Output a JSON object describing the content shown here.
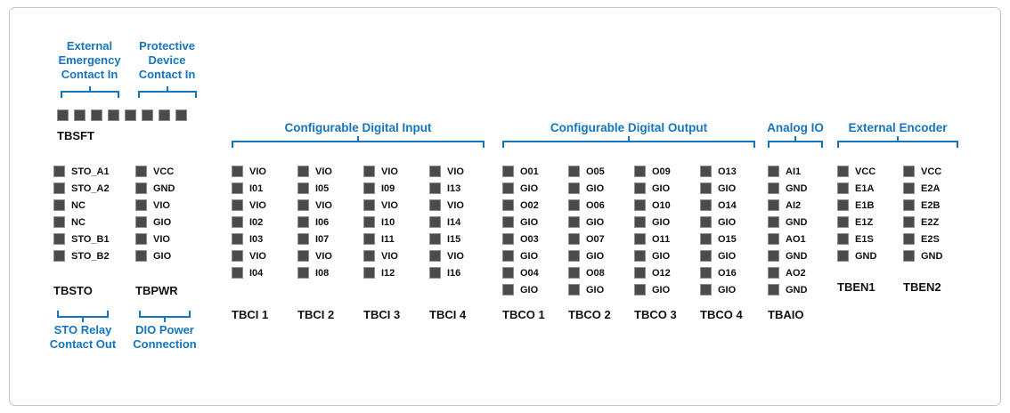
{
  "colors": {
    "accent": "#1576BD",
    "pin_fill": "#4B4B4B",
    "pin_border": "#8F8F8F",
    "frame_border": "#C5C5C5",
    "text": "#111111"
  },
  "tbsft": {
    "name": "TBSFT",
    "pin_count": 8,
    "annotations": [
      {
        "label": "External\nEmergency\nContact In"
      },
      {
        "label": "Protective\nDevice\nContact In"
      }
    ]
  },
  "left_blocks": [
    {
      "name": "TBSTO",
      "pins": [
        "STO_A1",
        "STO_A2",
        "NC",
        "NC",
        "STO_B1",
        "STO_B2"
      ],
      "annotation": "STO Relay\nContact Out"
    },
    {
      "name": "TBPWR",
      "pins": [
        "VCC",
        "GND",
        "VIO",
        "GIO",
        "VIO",
        "GIO"
      ],
      "annotation": "DIO Power\nConnection"
    }
  ],
  "groups": [
    {
      "header": "Configurable Digital Input",
      "blocks": [
        {
          "name": "TBCI 1",
          "pins": [
            "VIO",
            "I01",
            "VIO",
            "I02",
            "I03",
            "VIO",
            "I04"
          ]
        },
        {
          "name": "TBCI 2",
          "pins": [
            "VIO",
            "I05",
            "VIO",
            "I06",
            "I07",
            "VIO",
            "I08"
          ]
        },
        {
          "name": "TBCI 3",
          "pins": [
            "VIO",
            "I09",
            "VIO",
            "I10",
            "I11",
            "VIO",
            "I12"
          ]
        },
        {
          "name": "TBCI 4",
          "pins": [
            "VIO",
            "I13",
            "VIO",
            "I14",
            "I15",
            "VIO",
            "I16"
          ]
        }
      ]
    },
    {
      "header": "Configurable Digital Output",
      "blocks": [
        {
          "name": "TBCO 1",
          "pins": [
            "O01",
            "GIO",
            "O02",
            "GIO",
            "O03",
            "GIO",
            "O04",
            "GIO"
          ]
        },
        {
          "name": "TBCO 2",
          "pins": [
            "O05",
            "GIO",
            "O06",
            "GIO",
            "O07",
            "GIO",
            "O08",
            "GIO"
          ]
        },
        {
          "name": "TBCO 3",
          "pins": [
            "O09",
            "GIO",
            "O10",
            "GIO",
            "O11",
            "GIO",
            "O12",
            "GIO"
          ]
        },
        {
          "name": "TBCO 4",
          "pins": [
            "O13",
            "GIO",
            "O14",
            "GIO",
            "O15",
            "GIO",
            "O16",
            "GIO"
          ]
        }
      ]
    },
    {
      "header": "Analog IO",
      "blocks": [
        {
          "name": "TBAIO",
          "pins": [
            "AI1",
            "GND",
            "AI2",
            "GND",
            "AO1",
            "GND",
            "AO2",
            "GND"
          ]
        }
      ]
    },
    {
      "header": "External Encoder",
      "blocks": [
        {
          "name": "TBEN1",
          "pins": [
            "VCC",
            "E1A",
            "E1B",
            "E1Z",
            "E1S",
            "GND"
          ]
        },
        {
          "name": "TBEN2",
          "pins": [
            "VCC",
            "E2A",
            "E2B",
            "E2Z",
            "E2S",
            "GND"
          ]
        }
      ]
    }
  ]
}
